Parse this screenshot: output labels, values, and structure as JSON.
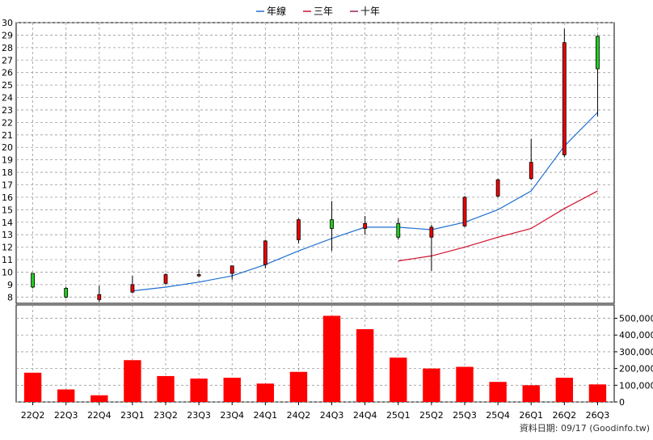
{
  "chart_data": {
    "type": "candlestick",
    "legend": {
      "placement": "top-center",
      "entries": [
        {
          "label": "年線",
          "color": "#1f6fd1"
        },
        {
          "label": "三年",
          "color": "#d0102a"
        },
        {
          "label": "十年",
          "color": "#9b1f5c"
        }
      ]
    },
    "categories": [
      "22Q2",
      "22Q3",
      "22Q4",
      "23Q1",
      "23Q2",
      "23Q3",
      "23Q4",
      "24Q1",
      "24Q2",
      "24Q3",
      "24Q4",
      "25Q1",
      "25Q2",
      "25Q3",
      "25Q4",
      "26Q1",
      "26Q2",
      "26Q3"
    ],
    "price_axis": {
      "ylim": [
        7.5,
        30
      ],
      "ticks": [
        8,
        9,
        10,
        11,
        12,
        13,
        14,
        15,
        16,
        17,
        18,
        19,
        20,
        21,
        22,
        23,
        24,
        25,
        26,
        27,
        28,
        29,
        30
      ]
    },
    "volume_axis": {
      "ylim": [
        0,
        580000
      ],
      "ticks": [
        0,
        100000,
        200000,
        300000,
        400000,
        500000
      ],
      "tick_labels": [
        "0",
        "100,000",
        "200,000",
        "300,000",
        "400,000",
        "500,000"
      ]
    },
    "candles": [
      {
        "open": 8.8,
        "high": 9.9,
        "low": 8.7,
        "close": 9.9
      },
      {
        "open": 8.0,
        "high": 8.8,
        "low": 7.9,
        "close": 8.7
      },
      {
        "open": 8.2,
        "high": 8.9,
        "low": 7.6,
        "close": 7.8
      },
      {
        "open": 9.0,
        "high": 9.7,
        "low": 8.3,
        "close": 8.4
      },
      {
        "open": 9.8,
        "high": 9.9,
        "low": 9.0,
        "close": 9.1
      },
      {
        "open": 9.8,
        "high": 10.2,
        "low": 9.6,
        "close": 9.7
      },
      {
        "open": 10.5,
        "high": 10.5,
        "low": 9.4,
        "close": 9.9
      },
      {
        "open": 12.5,
        "high": 12.6,
        "low": 10.3,
        "close": 10.6
      },
      {
        "open": 14.2,
        "high": 14.3,
        "low": 12.3,
        "close": 12.6
      },
      {
        "open": 13.5,
        "high": 15.7,
        "low": 11.7,
        "close": 14.2
      },
      {
        "open": 13.9,
        "high": 14.5,
        "low": 13.0,
        "close": 13.5
      },
      {
        "open": 12.8,
        "high": 14.3,
        "low": 12.6,
        "close": 13.9
      },
      {
        "open": 13.6,
        "high": 13.8,
        "low": 10.1,
        "close": 12.8
      },
      {
        "open": 16.0,
        "high": 16.1,
        "low": 13.6,
        "close": 13.7
      },
      {
        "open": 17.4,
        "high": 17.5,
        "low": 16.0,
        "close": 16.1
      },
      {
        "open": 18.8,
        "high": 20.7,
        "low": 17.4,
        "close": 17.5
      },
      {
        "open": 28.4,
        "high": 29.5,
        "low": 19.2,
        "close": 19.4
      },
      {
        "open": 26.3,
        "high": 29.0,
        "low": 22.5,
        "close": 28.9
      }
    ],
    "series": [
      {
        "name": "年線",
        "color": "#1f6fd1",
        "values": [
          null,
          null,
          null,
          8.5,
          8.8,
          9.2,
          9.7,
          10.6,
          11.7,
          12.7,
          13.6,
          13.6,
          13.4,
          14.0,
          15.0,
          16.5,
          20.1,
          22.8
        ]
      },
      {
        "name": "三年",
        "color": "#d0102a",
        "values": [
          null,
          null,
          null,
          null,
          null,
          null,
          null,
          null,
          null,
          null,
          null,
          10.9,
          11.3,
          12.0,
          12.8,
          13.5,
          15.1,
          16.5
        ]
      }
    ],
    "volume": [
      175000,
      75000,
      40000,
      250000,
      155000,
      140000,
      145000,
      110000,
      180000,
      515000,
      435000,
      265000,
      200000,
      210000,
      120000,
      100000,
      145000,
      105000
    ],
    "colors": {
      "up": "#22cc22",
      "down": "#ee0000",
      "volume_bar": "#ff0000",
      "grid": "#9a9a9a"
    },
    "grid": true,
    "footer_note": "資料日期: 09/17  (Goodinfo.tw)"
  }
}
